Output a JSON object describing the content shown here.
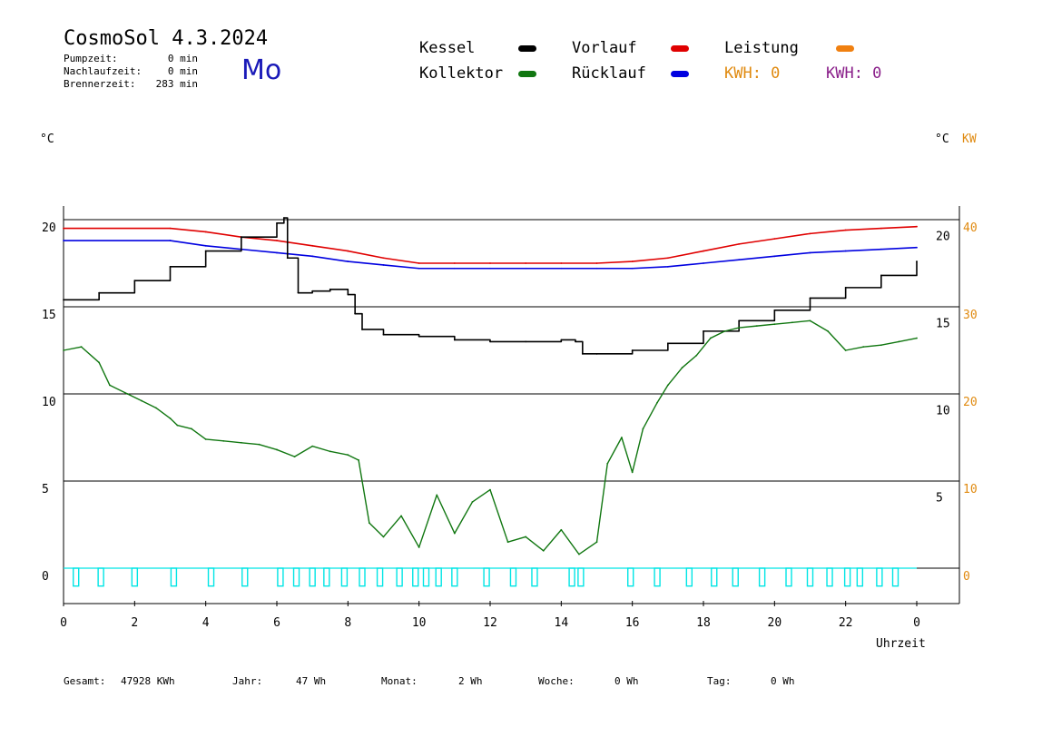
{
  "header": {
    "title": "CosmoSol 4.3.2024",
    "weekday": "Mo",
    "stats": [
      {
        "label": "Pumpzeit:",
        "value": "0 min"
      },
      {
        "label": "Nachlaufzeit:",
        "value": "0 min"
      },
      {
        "label": "Brennerzeit:",
        "value": "283 min"
      }
    ]
  },
  "legend": {
    "kessel": {
      "label": "Kessel",
      "color": "#000000"
    },
    "vorlauf": {
      "label": "Vorlauf",
      "color": "#e00000"
    },
    "leistung": {
      "label": "Leistung",
      "color": "#f08010"
    },
    "kollektor": {
      "label": "Kollektor",
      "color": "#117711"
    },
    "ruecklauf": {
      "label": "Rücklauf",
      "color": "#0000e0"
    },
    "kwh1": {
      "label": "KWH: 0",
      "color": "#e08a10"
    },
    "kwh2": {
      "label": "KWH: 0",
      "color": "#8a1f8a"
    }
  },
  "axes": {
    "left_unit": "°C",
    "right_unit_c": "°C",
    "right_unit_kw": "KW",
    "xlabel": "Uhrzeit"
  },
  "footer": {
    "gesamt_label": "Gesamt:",
    "gesamt_value": "47928 KWh",
    "jahr_label": "Jahr:",
    "jahr_value": "47 Wh",
    "monat_label": "Monat:",
    "monat_value": "2 Wh",
    "woche_label": "Woche:",
    "woche_value": "0 Wh",
    "tag_label": "Tag:",
    "tag_value": "0 Wh"
  },
  "chart_data": {
    "type": "line",
    "xlabel": "Uhrzeit",
    "ylabel": "°C",
    "xlim": [
      0,
      24
    ],
    "ylim": [
      -1.5,
      21
    ],
    "y2lim_kw": [
      -3,
      42
    ],
    "x_ticks": [
      "0",
      "2",
      "4",
      "6",
      "8",
      "10",
      "12",
      "14",
      "16",
      "18",
      "20",
      "22",
      "0"
    ],
    "x_tick_values": [
      0,
      2,
      4,
      6,
      8,
      10,
      12,
      14,
      16,
      18,
      20,
      22,
      24
    ],
    "y_left_ticks": [
      0,
      5,
      10,
      15,
      20
    ],
    "y_right_c_ticks": [
      5,
      10,
      15,
      20
    ],
    "y_right_c_tick_values": [
      4.5,
      9.5,
      14.5,
      19.5
    ],
    "y_right_kw_ticks": [
      0,
      10,
      20,
      30,
      40
    ],
    "grid_lines_y": [
      0,
      5,
      10,
      15,
      20
    ],
    "series": [
      {
        "name": "Vorlauf",
        "color": "#e00000",
        "x": [
          0,
          3,
          4,
          5,
          6,
          7,
          8,
          9,
          10,
          11,
          12,
          13,
          14,
          15,
          16,
          17,
          18,
          19,
          20,
          21,
          22,
          23,
          24
        ],
        "y": [
          19.5,
          19.5,
          19.3,
          19.0,
          18.8,
          18.5,
          18.2,
          17.8,
          17.5,
          17.5,
          17.5,
          17.5,
          17.5,
          17.5,
          17.6,
          17.8,
          18.2,
          18.6,
          18.9,
          19.2,
          19.4,
          19.5,
          19.6
        ]
      },
      {
        "name": "Rücklauf",
        "color": "#0000e0",
        "x": [
          0,
          3,
          4,
          5,
          6,
          7,
          8,
          9,
          10,
          11,
          12,
          13,
          14,
          15,
          16,
          17,
          18,
          19,
          20,
          21,
          22,
          23,
          24
        ],
        "y": [
          18.8,
          18.8,
          18.5,
          18.3,
          18.1,
          17.9,
          17.6,
          17.4,
          17.2,
          17.2,
          17.2,
          17.2,
          17.2,
          17.2,
          17.2,
          17.3,
          17.5,
          17.7,
          17.9,
          18.1,
          18.2,
          18.3,
          18.4
        ]
      },
      {
        "name": "Kessel",
        "color": "#000000",
        "x": [
          0,
          1,
          2,
          3,
          4,
          5,
          6,
          6.2,
          6.3,
          6.6,
          7,
          7.5,
          8,
          8.2,
          8.4,
          9,
          10,
          11,
          12,
          13,
          14,
          14.4,
          14.6,
          15,
          16,
          17,
          18,
          19,
          20,
          21,
          22,
          23,
          24
        ],
        "y": [
          15.4,
          15.8,
          16.5,
          17.3,
          18.2,
          19.0,
          19.8,
          20.1,
          17.8,
          15.8,
          15.9,
          16.0,
          15.7,
          14.6,
          13.7,
          13.4,
          13.3,
          13.1,
          13.0,
          13.0,
          13.1,
          13.0,
          12.3,
          12.3,
          12.5,
          12.9,
          13.6,
          14.2,
          14.8,
          15.5,
          16.1,
          16.8,
          17.6
        ]
      },
      {
        "name": "Kollektor",
        "color": "#117711",
        "x": [
          0,
          0.5,
          1,
          1.3,
          1.8,
          2.2,
          2.6,
          3,
          3.2,
          3.6,
          4,
          4.5,
          5,
          5.5,
          6,
          6.5,
          7,
          7.5,
          8,
          8.3,
          8.6,
          9,
          9.5,
          10,
          10.5,
          11,
          11.5,
          12,
          12.5,
          13,
          13.5,
          14,
          14.5,
          15,
          15.3,
          15.7,
          16,
          16.3,
          16.7,
          17,
          17.4,
          17.8,
          18.2,
          18.6,
          19,
          19.5,
          20,
          20.5,
          21,
          21.5,
          22,
          22.5,
          23,
          23.5,
          24
        ],
        "y": [
          12.5,
          12.7,
          11.8,
          10.5,
          10.0,
          9.6,
          9.2,
          8.6,
          8.2,
          8.0,
          7.4,
          7.3,
          7.2,
          7.1,
          6.8,
          6.4,
          7.0,
          6.7,
          6.5,
          6.2,
          2.6,
          1.8,
          3.0,
          1.2,
          4.2,
          2.0,
          3.8,
          4.5,
          1.5,
          1.8,
          1.0,
          2.2,
          0.8,
          1.5,
          6.0,
          7.5,
          5.5,
          8.0,
          9.5,
          10.5,
          11.5,
          12.2,
          13.2,
          13.6,
          13.8,
          13.9,
          14.0,
          14.1,
          14.2,
          13.6,
          12.5,
          12.7,
          12.8,
          13.0,
          13.2
        ]
      },
      {
        "name": "Pumpe",
        "color": "#00e5e5",
        "x": [
          0.35,
          1.05,
          2.0,
          3.1,
          4.15,
          5.1,
          6.1,
          6.55,
          7.0,
          7.4,
          7.9,
          8.4,
          8.9,
          9.45,
          9.9,
          10.2,
          10.55,
          11.0,
          11.9,
          12.65,
          13.25,
          14.3,
          14.55,
          15.95,
          16.7,
          17.6,
          18.3,
          18.9,
          19.65,
          20.4,
          21.0,
          21.55,
          22.05,
          22.4,
          22.95,
          23.4
        ],
        "y": [
          -0.4,
          -0.4,
          -0.4,
          -0.4,
          -0.4,
          -0.4,
          -0.4,
          -0.4,
          -0.4,
          -0.4,
          -0.4,
          -0.4,
          -0.4,
          -0.4,
          -0.4,
          -0.4,
          -0.4,
          -0.4,
          -0.4,
          -0.4,
          -0.4,
          -0.4,
          -0.4,
          -0.4,
          -0.4,
          -0.4,
          -0.4,
          -0.4,
          -0.4,
          -0.4,
          -0.4,
          -0.4,
          -0.4,
          -0.4,
          -0.4,
          -0.4
        ]
      }
    ]
  }
}
